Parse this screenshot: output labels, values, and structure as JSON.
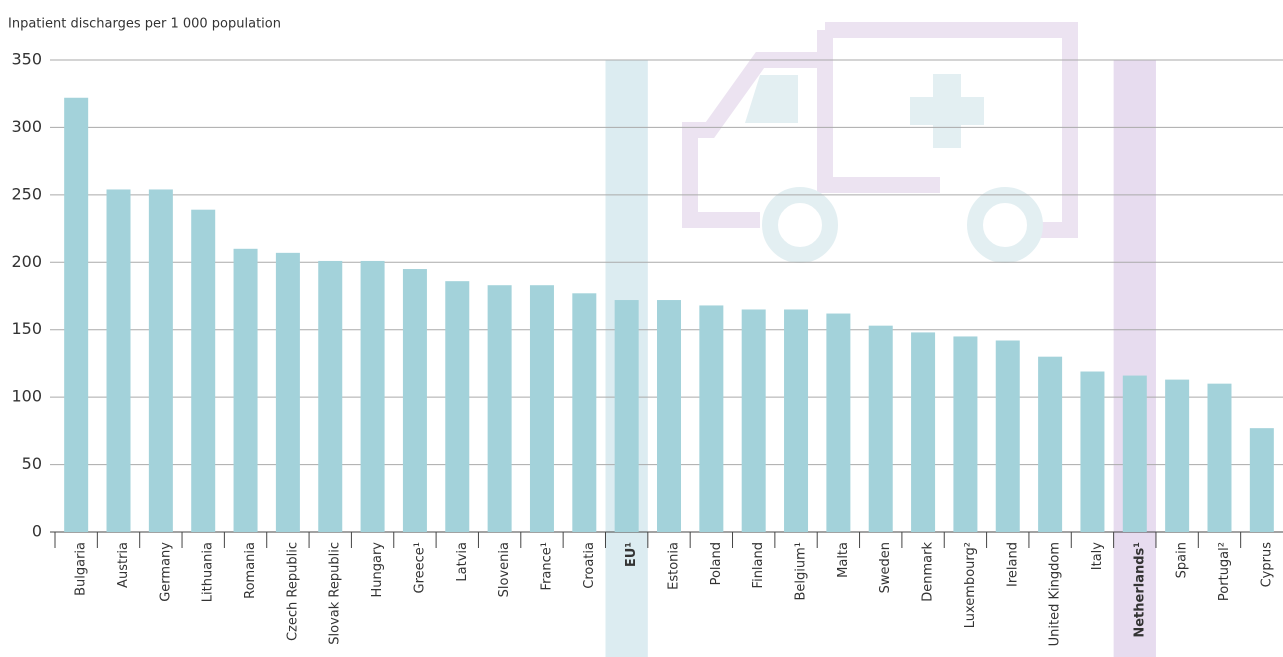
{
  "chart_data": {
    "type": "bar",
    "y_axis_label": "Inpatient discharges per 1 000 population",
    "categories": [
      "Bulgaria",
      "Austria",
      "Germany",
      "Lithuania",
      "Romania",
      "Czech Republic",
      "Slovak Republic",
      "Hungary",
      "Greece¹",
      "Latvia",
      "Slovenia",
      "France¹",
      "Croatia",
      "EU¹",
      "Estonia",
      "Poland",
      "Finland",
      "Belgium¹",
      "Malta",
      "Sweden",
      "Denmark",
      "Luxembourg²",
      "Ireland",
      "United Kingdom",
      "Italy",
      "Netherlands¹",
      "Spain",
      "Portugal²",
      "Cyprus"
    ],
    "values": [
      322,
      254,
      254,
      239,
      210,
      207,
      201,
      201,
      195,
      186,
      183,
      183,
      177,
      172,
      172,
      168,
      165,
      165,
      162,
      153,
      148,
      145,
      142,
      130,
      119,
      116,
      113,
      110,
      77
    ],
    "color": "#a3d2da",
    "highlight": [
      null,
      null,
      null,
      null,
      null,
      null,
      null,
      null,
      null,
      null,
      null,
      null,
      null,
      "#dcecf1",
      null,
      null,
      null,
      null,
      null,
      null,
      null,
      null,
      null,
      null,
      null,
      "#e7dcef",
      null,
      null,
      null
    ],
    "ylim": [
      0,
      350
    ],
    "yticks": [
      0,
      50,
      100,
      150,
      200,
      250,
      300,
      350
    ],
    "grid": true
  }
}
